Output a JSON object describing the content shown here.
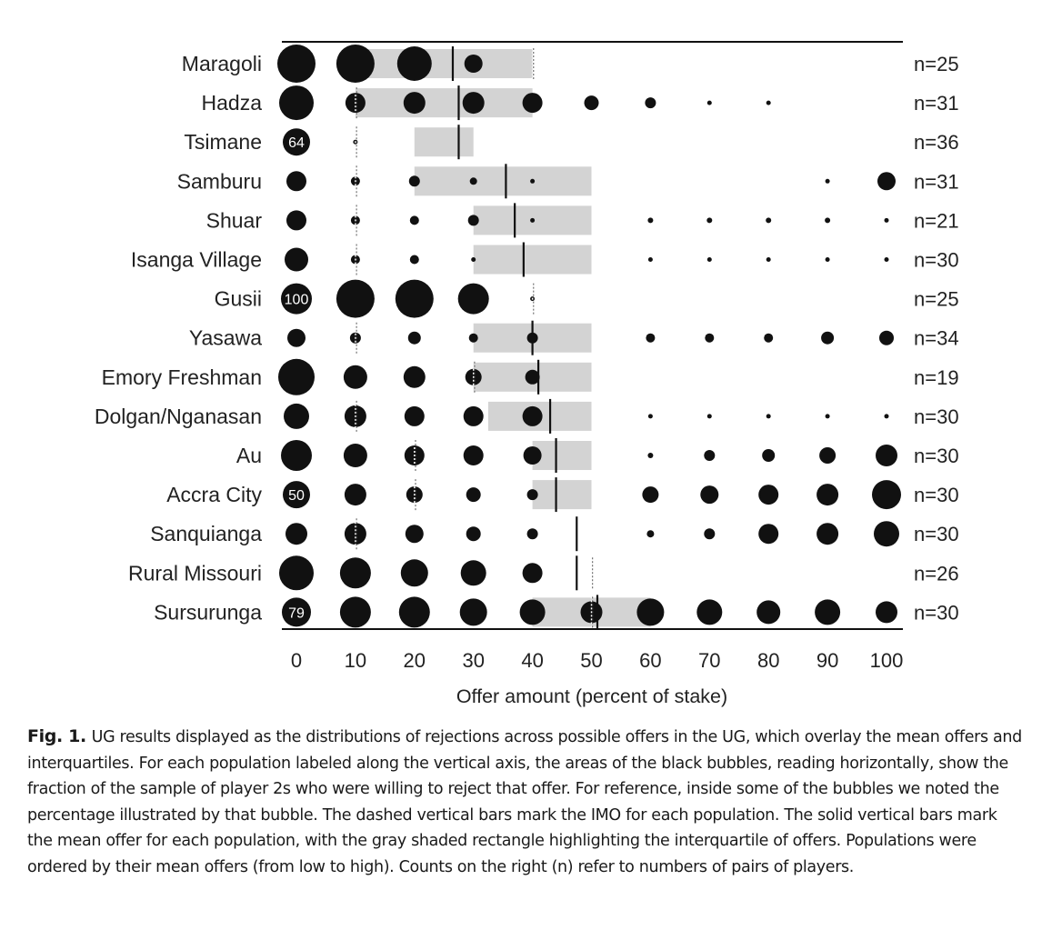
{
  "chart_data": {
    "type": "scatter",
    "x_label": "Offer amount (percent of stake)",
    "x_ticks": [
      0,
      10,
      20,
      30,
      40,
      50,
      60,
      70,
      80,
      90,
      100
    ],
    "xlim": [
      0,
      100
    ],
    "populations": [
      {
        "name": "Maragoli",
        "n_label": "n=25",
        "mean": 26.5,
        "iqr": [
          10,
          40
        ],
        "imo": 40,
        "bubbles": [
          {
            "x": 0,
            "r": 21
          },
          {
            "x": 10,
            "r": 21
          },
          {
            "x": 20,
            "r": 19
          },
          {
            "x": 30,
            "r": 10
          }
        ],
        "imo_line": false
      },
      {
        "name": "Hadza",
        "n_label": "n=31",
        "mean": 27.5,
        "iqr": [
          10,
          40
        ],
        "imo": 10,
        "bubbles": [
          {
            "x": 0,
            "r": 19
          },
          {
            "x": 10,
            "r": 11
          },
          {
            "x": 20,
            "r": 12
          },
          {
            "x": 30,
            "r": 12
          },
          {
            "x": 40,
            "r": 11
          },
          {
            "x": 50,
            "r": 8
          },
          {
            "x": 60,
            "r": 6
          },
          {
            "x": 70,
            "r": 2.5
          },
          {
            "x": 80,
            "r": 2.5
          }
        ]
      },
      {
        "name": "Tsimane",
        "n_label": "n=36",
        "mean": 27.5,
        "iqr": [
          20,
          30
        ],
        "imo": 10,
        "bubbles": [
          {
            "x": 0,
            "r": 15,
            "label": "64"
          },
          {
            "x": 10,
            "r": 2.5
          }
        ]
      },
      {
        "name": "Samburu",
        "n_label": "n=31",
        "mean": 35.5,
        "iqr": [
          20,
          50
        ],
        "imo": 10,
        "bubbles": [
          {
            "x": 0,
            "r": 11
          },
          {
            "x": 10,
            "r": 5
          },
          {
            "x": 20,
            "r": 6
          },
          {
            "x": 30,
            "r": 4
          },
          {
            "x": 40,
            "r": 2.5
          },
          {
            "x": 90,
            "r": 2.5
          },
          {
            "x": 100,
            "r": 10
          }
        ]
      },
      {
        "name": "Shuar",
        "n_label": "n=21",
        "mean": 37,
        "iqr": [
          30,
          50
        ],
        "imo": 10,
        "bubbles": [
          {
            "x": 0,
            "r": 11
          },
          {
            "x": 10,
            "r": 5
          },
          {
            "x": 20,
            "r": 5
          },
          {
            "x": 30,
            "r": 6
          },
          {
            "x": 40,
            "r": 2.5
          },
          {
            "x": 60,
            "r": 3
          },
          {
            "x": 70,
            "r": 3
          },
          {
            "x": 80,
            "r": 3
          },
          {
            "x": 90,
            "r": 3
          },
          {
            "x": 100,
            "r": 2.5
          }
        ]
      },
      {
        "name": "Isanga Village",
        "n_label": "n=30",
        "mean": 38.5,
        "iqr": [
          30,
          50
        ],
        "imo": 10,
        "bubbles": [
          {
            "x": 0,
            "r": 13
          },
          {
            "x": 10,
            "r": 5
          },
          {
            "x": 20,
            "r": 5
          },
          {
            "x": 30,
            "r": 2.5
          },
          {
            "x": 60,
            "r": 2.5
          },
          {
            "x": 70,
            "r": 2.5
          },
          {
            "x": 80,
            "r": 2.5
          },
          {
            "x": 90,
            "r": 2.5
          },
          {
            "x": 100,
            "r": 2.5
          }
        ]
      },
      {
        "name": "Gusii",
        "n_label": "n=25",
        "mean": null,
        "iqr": null,
        "imo": 40,
        "bubbles": [
          {
            "x": 0,
            "r": 17,
            "label": "100"
          },
          {
            "x": 10,
            "r": 21
          },
          {
            "x": 20,
            "r": 21
          },
          {
            "x": 30,
            "r": 17
          },
          {
            "x": 40,
            "r": 2.5
          }
        ]
      },
      {
        "name": "Yasawa",
        "n_label": "n=34",
        "mean": 40,
        "iqr": [
          30,
          50
        ],
        "imo": 10,
        "bubbles": [
          {
            "x": 0,
            "r": 10
          },
          {
            "x": 10,
            "r": 6
          },
          {
            "x": 20,
            "r": 7
          },
          {
            "x": 30,
            "r": 5
          },
          {
            "x": 40,
            "r": 6
          },
          {
            "x": 60,
            "r": 5
          },
          {
            "x": 70,
            "r": 5
          },
          {
            "x": 80,
            "r": 5
          },
          {
            "x": 90,
            "r": 7
          },
          {
            "x": 100,
            "r": 8
          }
        ]
      },
      {
        "name": "Emory Freshman",
        "n_label": "n=19",
        "mean": 41,
        "iqr": [
          30,
          50
        ],
        "imo": 30,
        "bubbles": [
          {
            "x": 0,
            "r": 20
          },
          {
            "x": 10,
            "r": 13
          },
          {
            "x": 20,
            "r": 12
          },
          {
            "x": 30,
            "r": 9
          },
          {
            "x": 40,
            "r": 8
          }
        ]
      },
      {
        "name": "Dolgan/Nganasan",
        "n_label": "n=30",
        "mean": 43,
        "iqr": [
          32.5,
          50
        ],
        "imo": 10,
        "bubbles": [
          {
            "x": 0,
            "r": 14
          },
          {
            "x": 10,
            "r": 12
          },
          {
            "x": 20,
            "r": 11
          },
          {
            "x": 30,
            "r": 11
          },
          {
            "x": 40,
            "r": 11
          },
          {
            "x": 60,
            "r": 2.5
          },
          {
            "x": 70,
            "r": 2.5
          },
          {
            "x": 80,
            "r": 2.5
          },
          {
            "x": 90,
            "r": 2.5
          },
          {
            "x": 100,
            "r": 2.5
          }
        ]
      },
      {
        "name": "Au",
        "n_label": "n=30",
        "mean": 44,
        "iqr": [
          40,
          50
        ],
        "imo": 20,
        "bubbles": [
          {
            "x": 0,
            "r": 17
          },
          {
            "x": 10,
            "r": 13
          },
          {
            "x": 20,
            "r": 11
          },
          {
            "x": 30,
            "r": 11
          },
          {
            "x": 40,
            "r": 10
          },
          {
            "x": 60,
            "r": 3
          },
          {
            "x": 70,
            "r": 6
          },
          {
            "x": 80,
            "r": 7
          },
          {
            "x": 90,
            "r": 9
          },
          {
            "x": 100,
            "r": 12
          }
        ]
      },
      {
        "name": "Accra City",
        "n_label": "n=30",
        "mean": 44,
        "iqr": [
          40,
          50
        ],
        "imo": 20,
        "bubbles": [
          {
            "x": 0,
            "r": 15,
            "label": "50"
          },
          {
            "x": 10,
            "r": 12
          },
          {
            "x": 20,
            "r": 9
          },
          {
            "x": 30,
            "r": 8
          },
          {
            "x": 40,
            "r": 6
          },
          {
            "x": 60,
            "r": 9
          },
          {
            "x": 70,
            "r": 10
          },
          {
            "x": 80,
            "r": 11
          },
          {
            "x": 90,
            "r": 12
          },
          {
            "x": 100,
            "r": 16
          }
        ]
      },
      {
        "name": "Sanquianga",
        "n_label": "n=30",
        "mean": 47.5,
        "iqr": null,
        "imo": 10,
        "bubbles": [
          {
            "x": 0,
            "r": 12
          },
          {
            "x": 10,
            "r": 12
          },
          {
            "x": 20,
            "r": 10
          },
          {
            "x": 30,
            "r": 8
          },
          {
            "x": 40,
            "r": 6
          },
          {
            "x": 60,
            "r": 4
          },
          {
            "x": 70,
            "r": 6
          },
          {
            "x": 80,
            "r": 11
          },
          {
            "x": 90,
            "r": 12
          },
          {
            "x": 100,
            "r": 14
          }
        ]
      },
      {
        "name": "Rural Missouri",
        "n_label": "n=26",
        "mean": 47.5,
        "iqr": null,
        "imo": 50,
        "bubbles": [
          {
            "x": 0,
            "r": 19
          },
          {
            "x": 10,
            "r": 17
          },
          {
            "x": 20,
            "r": 15
          },
          {
            "x": 30,
            "r": 14
          },
          {
            "x": 40,
            "r": 11
          }
        ]
      },
      {
        "name": "Sursurunga",
        "n_label": "n=30",
        "mean": 51,
        "iqr": [
          40,
          60
        ],
        "imo": 50,
        "bubbles": [
          {
            "x": 0,
            "r": 16,
            "label": "79"
          },
          {
            "x": 10,
            "r": 17
          },
          {
            "x": 20,
            "r": 17
          },
          {
            "x": 30,
            "r": 15
          },
          {
            "x": 40,
            "r": 14
          },
          {
            "x": 50,
            "r": 12
          },
          {
            "x": 60,
            "r": 15
          },
          {
            "x": 70,
            "r": 14
          },
          {
            "x": 80,
            "r": 13
          },
          {
            "x": 90,
            "r": 14
          },
          {
            "x": 100,
            "r": 12
          }
        ]
      }
    ]
  },
  "caption": {
    "label": "Fig. 1.",
    "text": "UG results displayed as the distributions of rejections across possible offers in the UG, which overlay the mean offers and interquartiles. For each population labeled along the vertical axis, the areas of the black bubbles, reading horizontally, show the fraction of the sample of player 2s who were willing to reject that offer. For reference, inside some of the bubbles we noted the percentage illustrated by that bubble. The dashed vertical bars mark the IMO for each population. The solid vertical bars mark the mean offer for each population, with the gray shaded rectangle highlighting the interquartile of offers. Populations were ordered by their mean offers (from low to high). Counts on the right (n) refer to numbers of pairs of players."
  }
}
